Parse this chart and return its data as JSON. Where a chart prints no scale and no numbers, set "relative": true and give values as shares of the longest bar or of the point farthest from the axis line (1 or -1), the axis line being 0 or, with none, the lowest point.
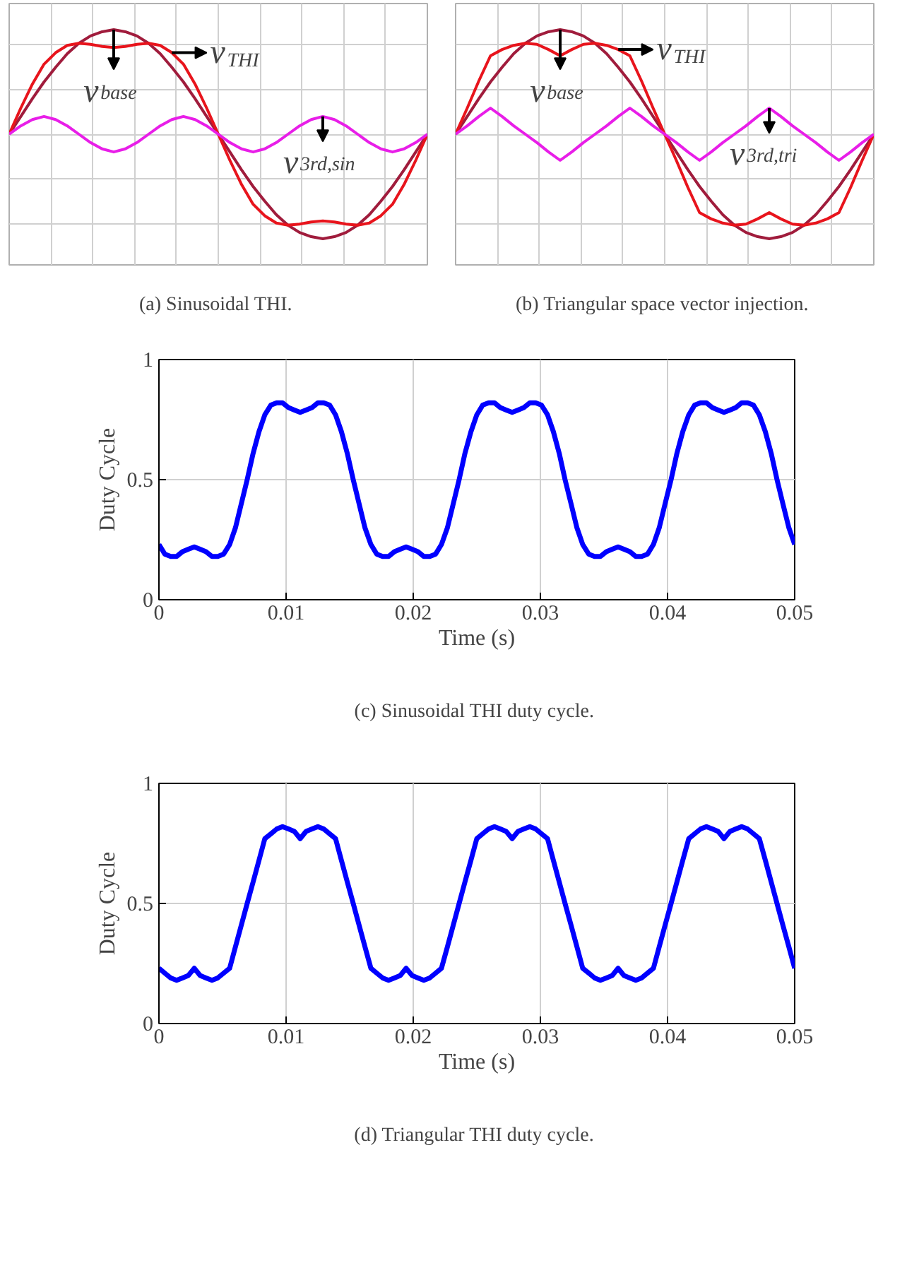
{
  "chart_data": [
    {
      "type": "line",
      "title": "(a)  Sinusoidal THI.",
      "relative": true,
      "grid": true,
      "categories": [
        null,
        null,
        null,
        null,
        null,
        null,
        null,
        null,
        null,
        null,
        null,
        null,
        null,
        null,
        null,
        null,
        null,
        null,
        null,
        null,
        null,
        null,
        null,
        null,
        null,
        null,
        null,
        null,
        null,
        null,
        null,
        null,
        null,
        null,
        null,
        null,
        null
      ],
      "series": [
        {
          "name": "v$_{base}$",
          "color": "#a01c3c",
          "values": [
            0,
            0.17,
            0.34,
            0.5,
            0.64,
            0.77,
            0.87,
            0.94,
            0.98,
            1,
            0.98,
            0.94,
            0.87,
            0.77,
            0.64,
            0.5,
            0.34,
            0.17,
            0,
            -0.17,
            -0.34,
            -0.5,
            -0.64,
            -0.77,
            -0.87,
            -0.94,
            -0.98,
            -1,
            -0.98,
            -0.94,
            -0.87,
            -0.77,
            -0.64,
            -0.5,
            -0.34,
            -0.17,
            0
          ]
        },
        {
          "name": "v$_{THI}$",
          "color": "#e8141c",
          "values": [
            0,
            0.25,
            0.48,
            0.67,
            0.78,
            0.85,
            0.87,
            0.86,
            0.84,
            0.83,
            0.84,
            0.86,
            0.87,
            0.85,
            0.78,
            0.67,
            0.48,
            0.25,
            0,
            -0.25,
            -0.48,
            -0.67,
            -0.78,
            -0.85,
            -0.87,
            -0.86,
            -0.84,
            -0.83,
            -0.84,
            -0.86,
            -0.87,
            -0.85,
            -0.78,
            -0.67,
            -0.48,
            -0.25,
            0
          ]
        },
        {
          "name": "v$_{3rd,sin}$",
          "color": "#e81ee8",
          "values": [
            0,
            0.08,
            0.14,
            0.17,
            0.14,
            0.08,
            0,
            -0.08,
            -0.14,
            -0.17,
            -0.14,
            -0.08,
            0,
            0.08,
            0.14,
            0.17,
            0.14,
            0.08,
            0,
            -0.08,
            -0.14,
            -0.17,
            -0.14,
            -0.08,
            0,
            0.08,
            0.14,
            0.17,
            0.14,
            0.08,
            0,
            -0.08,
            -0.14,
            -0.17,
            -0.14,
            -0.08,
            0
          ]
        }
      ]
    },
    {
      "type": "line",
      "title": "(b)  Triangular space vector injection.",
      "relative": true,
      "grid": true,
      "categories": [
        null,
        null,
        null,
        null,
        null,
        null,
        null,
        null,
        null,
        null,
        null,
        null,
        null,
        null,
        null,
        null,
        null,
        null,
        null,
        null,
        null,
        null,
        null,
        null,
        null,
        null,
        null,
        null,
        null,
        null,
        null,
        null,
        null,
        null,
        null,
        null,
        null
      ],
      "series": [
        {
          "name": "v$_{base}$",
          "color": "#a01c3c",
          "values": [
            0,
            0.17,
            0.34,
            0.5,
            0.64,
            0.77,
            0.87,
            0.94,
            0.98,
            1,
            0.98,
            0.94,
            0.87,
            0.77,
            0.64,
            0.5,
            0.34,
            0.17,
            0,
            -0.17,
            -0.34,
            -0.5,
            -0.64,
            -0.77,
            -0.87,
            -0.94,
            -0.98,
            -1,
            -0.98,
            -0.94,
            -0.87,
            -0.77,
            -0.64,
            -0.5,
            -0.34,
            -0.17,
            0
          ]
        },
        {
          "name": "v$_{THI}$",
          "color": "#e8141c",
          "values": [
            0,
            0.25,
            0.51,
            0.75,
            0.81,
            0.85,
            0.87,
            0.86,
            0.81,
            0.75,
            0.81,
            0.86,
            0.87,
            0.85,
            0.81,
            0.75,
            0.51,
            0.25,
            0,
            -0.25,
            -0.51,
            -0.75,
            -0.81,
            -0.85,
            -0.87,
            -0.86,
            -0.81,
            -0.75,
            -0.81,
            -0.86,
            -0.87,
            -0.85,
            -0.81,
            -0.75,
            -0.51,
            -0.25,
            0
          ]
        },
        {
          "name": "v$_{3rd,tri}$",
          "color": "#e81ee8",
          "values": [
            0,
            0.08,
            0.17,
            0.25,
            0.17,
            0.08,
            0,
            -0.08,
            -0.17,
            -0.25,
            -0.17,
            -0.08,
            0,
            0.08,
            0.17,
            0.25,
            0.17,
            0.08,
            0,
            -0.08,
            -0.17,
            -0.25,
            -0.17,
            -0.08,
            0,
            0.08,
            0.17,
            0.25,
            0.17,
            0.08,
            0,
            -0.08,
            -0.17,
            -0.25,
            -0.17,
            -0.08,
            0
          ]
        }
      ]
    },
    {
      "type": "line",
      "title": "(c)  Sinusoidal THI duty cycle.",
      "xlabel": "Time (s)",
      "ylabel": "Duty Cycle",
      "grid": true,
      "color": "#0000ff",
      "xlim": [
        0,
        0.05
      ],
      "ylim": [
        0,
        1
      ],
      "xticks": [
        0,
        0.01,
        0.02,
        0.03,
        0.04,
        0.05
      ],
      "yticks": [
        0,
        0.5,
        1
      ],
      "x": [
        0,
        0.00046,
        0.00093,
        0.00139,
        0.00185,
        0.00231,
        0.00278,
        0.00324,
        0.0037,
        0.00417,
        0.00463,
        0.00509,
        0.00556,
        0.00602,
        0.00648,
        0.00694,
        0.00741,
        0.00787,
        0.00833,
        0.0088,
        0.00926,
        0.00972,
        0.01019,
        0.01065,
        0.01111,
        0.01157,
        0.01204,
        0.0125,
        0.01296,
        0.01343,
        0.01389,
        0.01435,
        0.01481,
        0.01528,
        0.01574,
        0.0162,
        0.01667,
        0.01713,
        0.01759,
        0.01806,
        0.01852,
        0.01898,
        0.01944,
        0.01991,
        0.02037,
        0.02083,
        0.0213,
        0.02176,
        0.02222,
        0.02269,
        0.02315,
        0.02361,
        0.02407,
        0.02454,
        0.025,
        0.02546,
        0.02593,
        0.02639,
        0.02685,
        0.02731,
        0.02778,
        0.02824,
        0.0287,
        0.02917,
        0.02963,
        0.03009,
        0.03056,
        0.03102,
        0.03148,
        0.03194,
        0.03241,
        0.03287,
        0.03333,
        0.0338,
        0.03426,
        0.03472,
        0.03519,
        0.03565,
        0.03611,
        0.03657,
        0.03704,
        0.0375,
        0.03796,
        0.03843,
        0.03889,
        0.03935,
        0.03981,
        0.04028,
        0.04074,
        0.0412,
        0.04167,
        0.04213,
        0.04259,
        0.04306,
        0.04352,
        0.04398,
        0.04444,
        0.04491,
        0.04537,
        0.04583,
        0.0463,
        0.04676,
        0.04722,
        0.04769,
        0.04815,
        0.04861,
        0.04907,
        0.04954,
        0.05
      ],
      "values": [
        0.23,
        0.19,
        0.18,
        0.18,
        0.2,
        0.21,
        0.22,
        0.21,
        0.2,
        0.18,
        0.18,
        0.19,
        0.23,
        0.3,
        0.4,
        0.5,
        0.61,
        0.7,
        0.77,
        0.81,
        0.82,
        0.82,
        0.8,
        0.79,
        0.78,
        0.79,
        0.8,
        0.82,
        0.82,
        0.81,
        0.77,
        0.7,
        0.61,
        0.5,
        0.4,
        0.3,
        0.23,
        0.19,
        0.18,
        0.18,
        0.2,
        0.21,
        0.22,
        0.21,
        0.2,
        0.18,
        0.18,
        0.19,
        0.23,
        0.3,
        0.4,
        0.5,
        0.61,
        0.7,
        0.77,
        0.81,
        0.82,
        0.82,
        0.8,
        0.79,
        0.78,
        0.79,
        0.8,
        0.82,
        0.82,
        0.81,
        0.77,
        0.7,
        0.61,
        0.5,
        0.4,
        0.3,
        0.23,
        0.19,
        0.18,
        0.18,
        0.2,
        0.21,
        0.22,
        0.21,
        0.2,
        0.18,
        0.18,
        0.19,
        0.23,
        0.3,
        0.4,
        0.5,
        0.61,
        0.7,
        0.77,
        0.81,
        0.82,
        0.82,
        0.8,
        0.79,
        0.78,
        0.79,
        0.8,
        0.82,
        0.82,
        0.81,
        0.77,
        0.7,
        0.61,
        0.5,
        0.4,
        0.3,
        0.23
      ]
    },
    {
      "type": "line",
      "title": "(d)  Triangular THI duty cycle.",
      "xlabel": "Time (s)",
      "ylabel": "Duty Cycle",
      "grid": true,
      "color": "#0000ff",
      "xlim": [
        0,
        0.05
      ],
      "ylim": [
        0,
        1
      ],
      "xticks": [
        0,
        0.01,
        0.02,
        0.03,
        0.04,
        0.05
      ],
      "yticks": [
        0,
        0.5,
        1
      ],
      "x": [
        0,
        0.00046,
        0.00093,
        0.00139,
        0.00185,
        0.00231,
        0.00278,
        0.00324,
        0.0037,
        0.00417,
        0.00463,
        0.00509,
        0.00556,
        0.00602,
        0.00648,
        0.00694,
        0.00741,
        0.00787,
        0.00833,
        0.0088,
        0.00926,
        0.00972,
        0.01019,
        0.01065,
        0.01111,
        0.01157,
        0.01204,
        0.0125,
        0.01296,
        0.01343,
        0.01389,
        0.01435,
        0.01481,
        0.01528,
        0.01574,
        0.0162,
        0.01667,
        0.01713,
        0.01759,
        0.01806,
        0.01852,
        0.01898,
        0.01944,
        0.01991,
        0.02037,
        0.02083,
        0.0213,
        0.02176,
        0.02222,
        0.02269,
        0.02315,
        0.02361,
        0.02407,
        0.02454,
        0.025,
        0.02546,
        0.02593,
        0.02639,
        0.02685,
        0.02731,
        0.02778,
        0.02824,
        0.0287,
        0.02917,
        0.02963,
        0.03009,
        0.03056,
        0.03102,
        0.03148,
        0.03194,
        0.03241,
        0.03287,
        0.03333,
        0.0338,
        0.03426,
        0.03472,
        0.03519,
        0.03565,
        0.03611,
        0.03657,
        0.03704,
        0.0375,
        0.03796,
        0.03843,
        0.03889,
        0.03935,
        0.03981,
        0.04028,
        0.04074,
        0.0412,
        0.04167,
        0.04213,
        0.04259,
        0.04306,
        0.04352,
        0.04398,
        0.04444,
        0.04491,
        0.04537,
        0.04583,
        0.0463,
        0.04676,
        0.04722,
        0.04769,
        0.04815,
        0.04861,
        0.04907,
        0.04954,
        0.05
      ],
      "values": [
        0.23,
        0.21,
        0.19,
        0.18,
        0.19,
        0.2,
        0.23,
        0.2,
        0.19,
        0.18,
        0.19,
        0.21,
        0.23,
        0.32,
        0.41,
        0.5,
        0.59,
        0.68,
        0.77,
        0.79,
        0.81,
        0.82,
        0.81,
        0.8,
        0.77,
        0.8,
        0.81,
        0.82,
        0.81,
        0.79,
        0.77,
        0.68,
        0.59,
        0.5,
        0.41,
        0.32,
        0.23,
        0.21,
        0.19,
        0.18,
        0.19,
        0.2,
        0.23,
        0.2,
        0.19,
        0.18,
        0.19,
        0.21,
        0.23,
        0.32,
        0.41,
        0.5,
        0.59,
        0.68,
        0.77,
        0.79,
        0.81,
        0.82,
        0.81,
        0.8,
        0.77,
        0.8,
        0.81,
        0.82,
        0.81,
        0.79,
        0.77,
        0.68,
        0.59,
        0.5,
        0.41,
        0.32,
        0.23,
        0.21,
        0.19,
        0.18,
        0.19,
        0.2,
        0.23,
        0.2,
        0.19,
        0.18,
        0.19,
        0.21,
        0.23,
        0.32,
        0.41,
        0.5,
        0.59,
        0.68,
        0.77,
        0.79,
        0.81,
        0.82,
        0.81,
        0.8,
        0.77,
        0.8,
        0.81,
        0.82,
        0.81,
        0.79,
        0.77,
        0.68,
        0.59,
        0.5,
        0.41,
        0.32,
        0.23
      ]
    }
  ]
}
